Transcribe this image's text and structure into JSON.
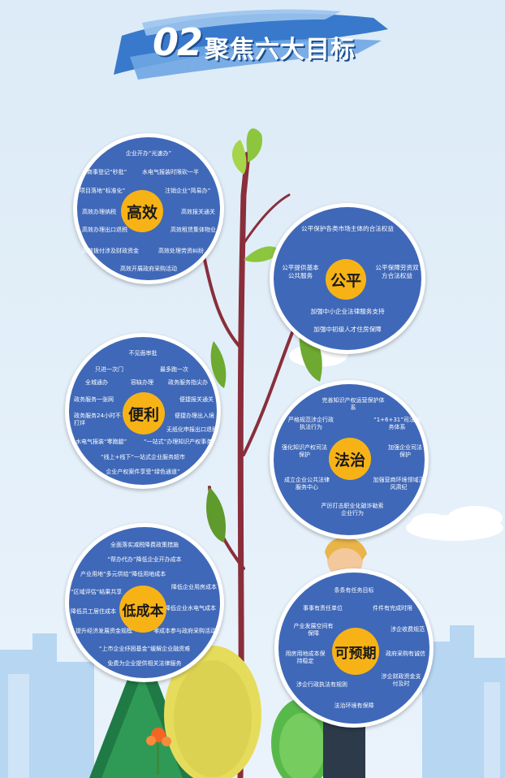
{
  "header": {
    "number": "02",
    "title": "聚焦六大目标"
  },
  "goals": [
    {
      "name": "高效",
      "items": [
        "企业开办“光速办”",
        "商事登记“秒批”",
        "水电气报装时限砍一半",
        "项目落地“标准化”",
        "注销企业“简易办”",
        "高效办理纳税",
        "高效报关通关",
        "高效办理出口退税",
        "高效租赁集体物业",
        "高效拨付涉及财政资金",
        "高效处理劳资纠纷",
        "高效开展政府采购活动"
      ]
    },
    {
      "name": "公平",
      "items": [
        "公平保护各类市场主体的合法权益",
        "公平提供基本公共服务",
        "公平保障劳资双方合法权益",
        "加强中小企业法律服务支持",
        "加强中初级人才住房保障"
      ]
    },
    {
      "name": "便利",
      "items": [
        "不见面审批",
        "只进一次门",
        "最多跑一次",
        "全城通办",
        "容缺办理",
        "政务服务指尖办",
        "政务服务一张网",
        "便捷报关通关",
        "政务服务24小时不打烊",
        "便捷办理出入境",
        "无纸化申报出口退税",
        "水电气报装“零跑腿”",
        "“一站式”办理知识产权事务",
        "“线上+线下”一站式企业服务超市",
        "企业产权案件享受“绿色通道”"
      ]
    },
    {
      "name": "法治",
      "items": [
        "完善知识产权运营保护体系",
        "严格规范涉企行政执法行为",
        "“1+6+31”司法服务体系",
        "强化知识产权司法保护",
        "加强企业司法保护",
        "成立企业公共法律服务中心",
        "加强营商环境领域正风肃纪",
        "严厉打击职业化敲诈勒索企业行为"
      ]
    },
    {
      "name": "低成本",
      "items": [
        "全面落实减税降费政策措施",
        "“帮办代办”降低企业开办成本",
        "产业用地“多元供给”降低用地成本",
        "“区域评估”结果共享",
        "降低企业用房成本",
        "降低员工居住成本",
        "降低企业水电气成本",
        "提升经济发展资金规模",
        "零成本参与政府采购活动",
        "“上市企业纾困基金”缓解企业融资难",
        "免费为企业提供相关法律服务"
      ]
    },
    {
      "name": "可预期",
      "items": [
        "条条有任务目标",
        "事事有责任单位",
        "件件有完成时限",
        "产业发展空间有保障",
        "涉企收费规范",
        "用房用地成本保持稳定",
        "政府采购有诚信",
        "涉企行政执法有规则",
        "涉企财政资金支付及时",
        "法治环境有保障"
      ]
    }
  ]
}
